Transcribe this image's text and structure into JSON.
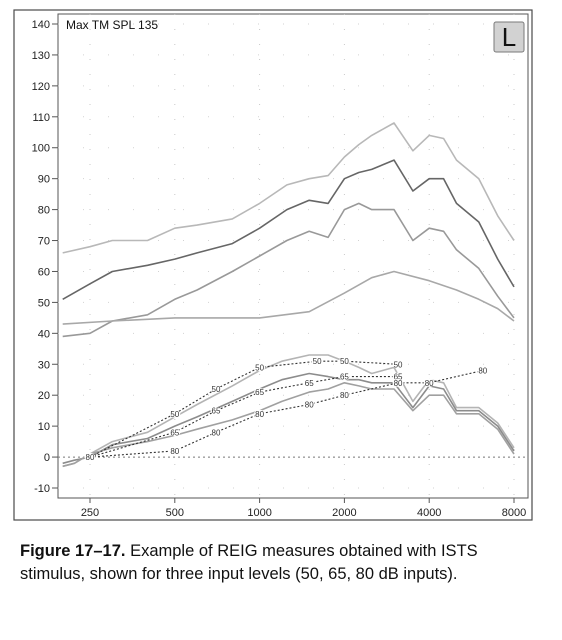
{
  "chart_data": {
    "type": "line",
    "annotation": "Max TM SPL 135",
    "badge": "L",
    "ylim": [
      -10,
      140
    ],
    "yticks": [
      140,
      130,
      120,
      110,
      100,
      90,
      80,
      70,
      60,
      50,
      40,
      30,
      20,
      10,
      0,
      -10
    ],
    "xscale": "log",
    "xlim": [
      200,
      8000
    ],
    "xticks": [
      250,
      500,
      1000,
      2000,
      4000,
      8000
    ],
    "grid": "dotted",
    "reference_line": 0,
    "series": [
      {
        "group": "upper",
        "color": "#b8b8b8",
        "x": [
          200,
          250,
          300,
          400,
          500,
          600,
          800,
          1000,
          1250,
          1500,
          1750,
          2000,
          2250,
          2500,
          3000,
          3500,
          4000,
          4500,
          5000,
          6000,
          7000,
          8000
        ],
        "y": [
          66,
          68,
          70,
          70,
          74,
          75,
          77,
          82,
          88,
          90,
          91,
          97,
          101,
          104,
          108,
          99,
          104,
          103,
          96,
          90,
          78,
          70
        ]
      },
      {
        "group": "upper",
        "color": "#666666",
        "x": [
          200,
          250,
          300,
          400,
          500,
          600,
          800,
          1000,
          1250,
          1500,
          1750,
          2000,
          2250,
          2500,
          3000,
          3500,
          4000,
          4500,
          5000,
          6000,
          7000,
          8000
        ],
        "y": [
          51,
          56,
          60,
          62,
          64,
          66,
          69,
          74,
          80,
          83,
          82,
          90,
          92,
          93,
          96,
          86,
          90,
          90,
          82,
          76,
          64,
          55
        ]
      },
      {
        "group": "upper",
        "color": "#999999",
        "x": [
          200,
          250,
          300,
          400,
          500,
          600,
          800,
          1000,
          1250,
          1500,
          1750,
          2000,
          2250,
          2500,
          3000,
          3500,
          4000,
          4500,
          5000,
          6000,
          7000,
          8000
        ],
        "y": [
          39,
          40,
          44,
          46,
          51,
          54,
          60,
          65,
          70,
          73,
          71,
          80,
          82,
          80,
          80,
          70,
          74,
          73,
          67,
          61,
          52,
          45
        ]
      },
      {
        "group": "upper",
        "color": "#a8a8a8",
        "x": [
          200,
          300,
          500,
          800,
          1000,
          1500,
          2000,
          2500,
          3000,
          4000,
          5000,
          6000,
          7000,
          8000
        ],
        "y": [
          43,
          44,
          45,
          45,
          45,
          47,
          53,
          58,
          60,
          57,
          54,
          51,
          48,
          44
        ]
      },
      {
        "group": "reig",
        "color": "#b4b4b4",
        "x": [
          200,
          220,
          250,
          300,
          400,
          500,
          600,
          800,
          1000,
          1200,
          1500,
          1750,
          2000,
          2250,
          2500,
          3000,
          3500,
          4000,
          4500,
          5000,
          6000,
          7000,
          8000
        ],
        "y": [
          -3,
          -2,
          1,
          5,
          8,
          13,
          17,
          23,
          28,
          31,
          33,
          33,
          31,
          29,
          27,
          29,
          18,
          25,
          24,
          16,
          16,
          11,
          3
        ]
      },
      {
        "group": "reig",
        "color": "#8c8c8c",
        "x": [
          200,
          220,
          250,
          300,
          400,
          500,
          600,
          800,
          1000,
          1200,
          1500,
          1750,
          2000,
          2250,
          2500,
          3000,
          3500,
          4000,
          4500,
          5000,
          6000,
          7000,
          8000
        ],
        "y": [
          -2,
          -1,
          0,
          4,
          6,
          10,
          13,
          18,
          22,
          25,
          27,
          26,
          25,
          25,
          24,
          24,
          16,
          23,
          22,
          15,
          15,
          10,
          2
        ]
      },
      {
        "group": "reig",
        "color": "#a0a0a0",
        "x": [
          200,
          220,
          250,
          300,
          400,
          500,
          600,
          800,
          1000,
          1200,
          1500,
          1750,
          2000,
          2250,
          2500,
          3000,
          3500,
          4000,
          4500,
          5000,
          6000,
          7000,
          8000
        ],
        "y": [
          -3,
          -2,
          1,
          3,
          5,
          7,
          9,
          12,
          15,
          18,
          21,
          22,
          24,
          23,
          22,
          22,
          15,
          20,
          20,
          14,
          14,
          9,
          1
        ]
      }
    ],
    "marked_series": [
      {
        "label": "50",
        "x": [
          250,
          500,
          700,
          1000,
          1600,
          2000,
          3100
        ],
        "y": [
          0,
          14,
          22,
          29,
          31,
          31,
          30
        ]
      },
      {
        "label": "65",
        "x": [
          250,
          500,
          700,
          1000,
          1500,
          2000,
          3100
        ],
        "y": [
          0,
          8,
          15,
          21,
          24,
          26,
          26
        ]
      },
      {
        "label": "80",
        "x": [
          250,
          500,
          700,
          1000,
          1500,
          2000,
          3100,
          4000,
          6200
        ],
        "y": [
          0,
          2,
          8,
          14,
          17,
          20,
          24,
          24,
          28
        ]
      }
    ]
  },
  "caption": {
    "label": "Figure 17–17.",
    "text": "Example of REIG measures obtained with ISTS stimulus, shown for three input levels (50, 65, 80 dB inputs)."
  }
}
